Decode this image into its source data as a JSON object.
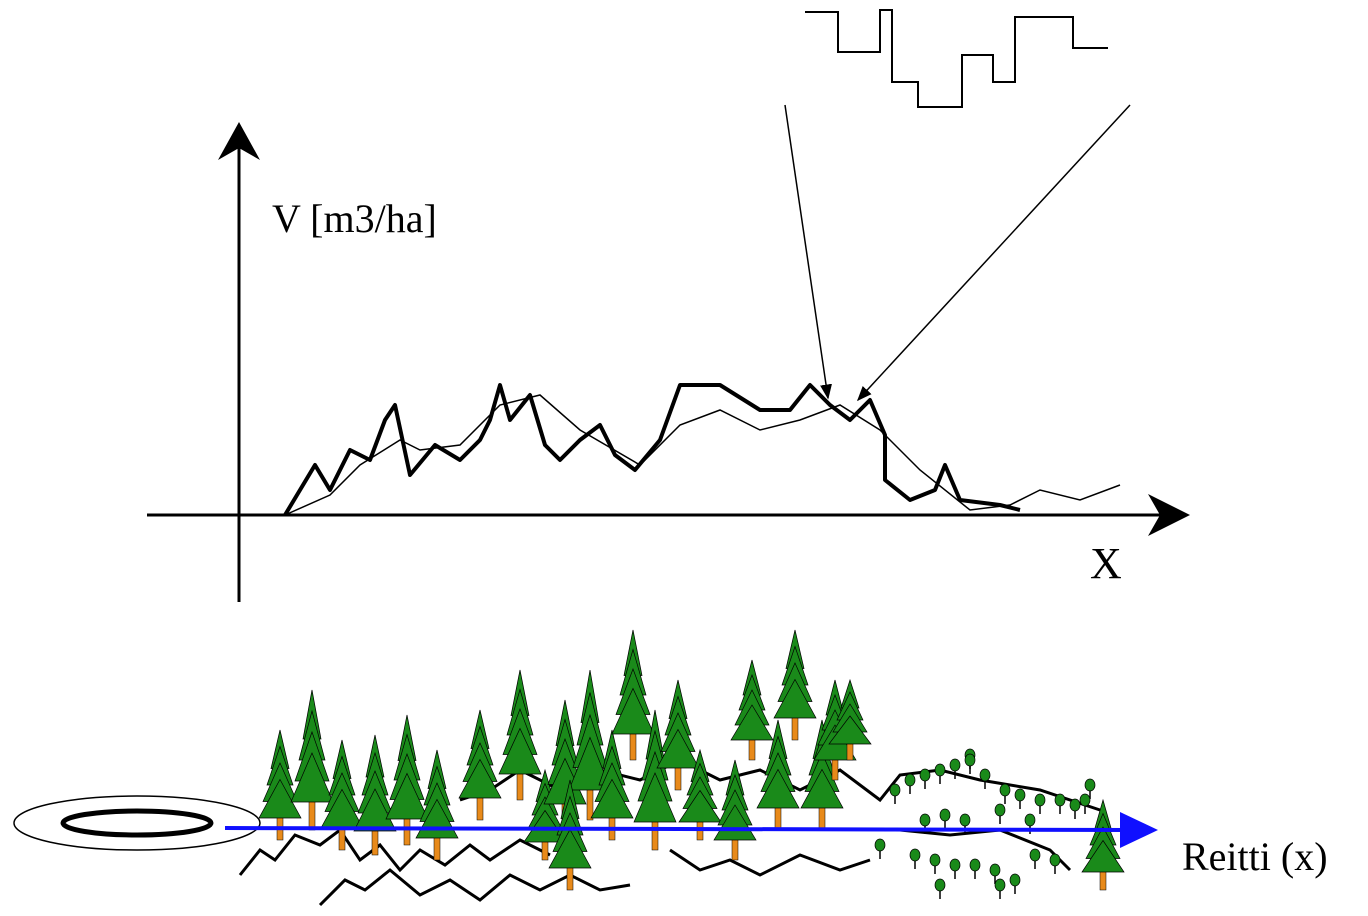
{
  "labels": {
    "y_axis": "V [m3/ha]",
    "x_axis": "X",
    "route": "Reitti (x)"
  }
}
